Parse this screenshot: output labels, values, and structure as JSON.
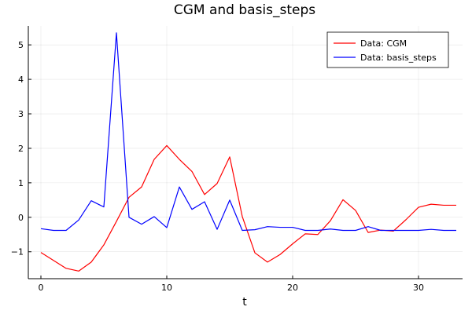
{
  "chart_data": {
    "type": "line",
    "title": "CGM and basis_steps",
    "xlabel": "t",
    "ylabel": "",
    "xlim": [
      -1,
      33.5
    ],
    "ylim": [
      -1.78,
      5.55
    ],
    "xticks": [
      0,
      10,
      20,
      30
    ],
    "yticks": [
      -1,
      0,
      1,
      2,
      3,
      4,
      5
    ],
    "grid": true,
    "legend_position": "top-right",
    "x": [
      0,
      1,
      2,
      3,
      4,
      5,
      6,
      7,
      8,
      9,
      10,
      11,
      12,
      13,
      14,
      15,
      16,
      17,
      18,
      19,
      20,
      21,
      22,
      23,
      24,
      25,
      26,
      27,
      28,
      29,
      30,
      31,
      32,
      33
    ],
    "series": [
      {
        "name": "Data: CGM",
        "color": "#ff0000",
        "values": [
          -1.02,
          -1.25,
          -1.48,
          -1.56,
          -1.3,
          -0.8,
          -0.12,
          0.58,
          0.88,
          1.68,
          2.08,
          1.68,
          1.33,
          0.66,
          0.98,
          1.75,
          0.02,
          -1.03,
          -1.3,
          -1.08,
          -0.77,
          -0.48,
          -0.5,
          -0.1,
          0.51,
          0.2,
          -0.44,
          -0.37,
          -0.4,
          -0.07,
          0.29,
          0.38,
          0.35,
          0.35
        ]
      },
      {
        "name": "Data: basis_steps",
        "color": "#0000ff",
        "values": [
          -0.33,
          -0.38,
          -0.38,
          -0.08,
          0.48,
          0.3,
          5.35,
          0.0,
          -0.2,
          0.02,
          -0.3,
          0.88,
          0.23,
          0.45,
          -0.35,
          0.5,
          -0.38,
          -0.36,
          -0.27,
          -0.29,
          -0.29,
          -0.38,
          -0.38,
          -0.34,
          -0.38,
          -0.38,
          -0.27,
          -0.38,
          -0.38,
          -0.38,
          -0.38,
          -0.35,
          -0.38,
          -0.38
        ]
      }
    ]
  }
}
